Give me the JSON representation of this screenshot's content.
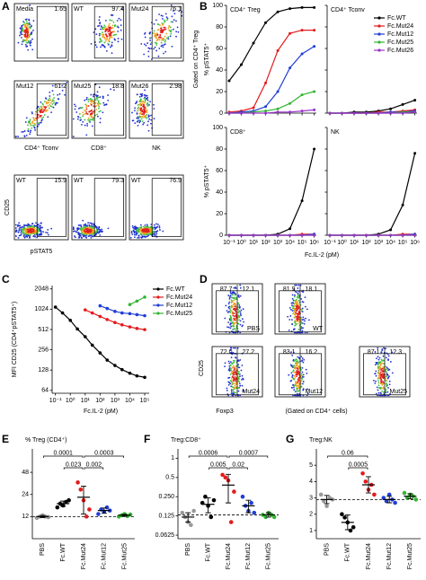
{
  "flow_a": {
    "label": "A",
    "ylabel": "CD25",
    "xlabel": "pSTAT5",
    "populations": [
      "CD4⁺ Tconv",
      "CD8⁺",
      "NK"
    ],
    "plots": [
      {
        "sample": "Media",
        "gate": "1.65"
      },
      {
        "sample": "WT",
        "gate": "97.4"
      },
      {
        "sample": "Mut24",
        "gate": "76.1"
      },
      {
        "sample": "Mut12",
        "gate": "61.2"
      },
      {
        "sample": "Mut25",
        "gate": "18.8"
      },
      {
        "sample": "Mut26",
        "gate": "2.98"
      },
      {
        "sample": "WT",
        "gate": "15.9"
      },
      {
        "sample": "WT",
        "gate": "79.3"
      },
      {
        "sample": "WT",
        "gate": "76.9"
      }
    ]
  },
  "flow_d": {
    "label": "D",
    "ylabel": "CD25",
    "xlabel": "Foxp3",
    "gate_note": "(Gated on CD4⁺ cells)",
    "plots": [
      {
        "sample": "PBS",
        "left": "87.7",
        "right": "12.1"
      },
      {
        "sample": "WT",
        "left": "81.9",
        "right": "18.1"
      },
      {
        "sample": "Mut24",
        "left": "72.0",
        "right": "27.2"
      },
      {
        "sample": "Mut12",
        "left": "83.1",
        "right": "16.2"
      },
      {
        "sample": "Mut25",
        "left": "87.1",
        "right": "12.3"
      }
    ]
  },
  "chart_data": [
    {
      "type": "line",
      "label": "B",
      "ylabel": "% pSTAT5⁺",
      "xlabel": "Fc.IL-2 (pM)",
      "gate_note": "Gated on CD4⁺ Treg",
      "xlog": true,
      "x": [
        0.1,
        1,
        10,
        100,
        1000,
        10000,
        100000,
        1000000
      ],
      "xlim": [
        0.06,
        1500000
      ],
      "xticks": [
        {
          "value": 0.1,
          "label": "10⁻¹"
        },
        {
          "value": 1,
          "label": "10⁰"
        },
        {
          "value": 10,
          "label": "10¹"
        },
        {
          "value": 100,
          "label": "10²"
        },
        {
          "value": 1000,
          "label": "10³"
        },
        {
          "value": 10000,
          "label": "10⁴"
        },
        {
          "value": 100000,
          "label": "10⁵"
        },
        {
          "value": 1000000,
          "label": "10⁶"
        }
      ],
      "ylim": [
        0,
        100
      ],
      "yticks": [
        0,
        20,
        40,
        60,
        80,
        100
      ],
      "legend_corner": "upper right",
      "legend": [
        {
          "name": "Fc.WT",
          "color": "#000000"
        },
        {
          "name": "Fc.Mut24",
          "color": "#e41a1c"
        },
        {
          "name": "Fc.Mut12",
          "color": "#1f3fd6"
        },
        {
          "name": "Fc.Mut25",
          "color": "#33b533"
        },
        {
          "name": "Fc.Mut26",
          "color": "#9933cc"
        }
      ],
      "panels": [
        {
          "title": "CD4⁺ Treg",
          "series": [
            {
              "values": [
                30,
                45,
                65,
                84,
                94,
                97,
                98,
                98
              ]
            },
            {
              "values": [
                1,
                2,
                5,
                28,
                58,
                74,
                77,
                77
              ]
            },
            {
              "values": [
                0,
                1,
                2,
                6,
                20,
                42,
                55,
                62
              ]
            },
            {
              "values": [
                0,
                0,
                1,
                2,
                4,
                9,
                17,
                20
              ]
            },
            {
              "values": [
                0,
                0,
                0,
                0,
                1,
                1,
                2,
                3
              ]
            }
          ]
        },
        {
          "title": "CD4⁺ Tconv",
          "series": [
            {
              "values": [
                0,
                0,
                1,
                1,
                2,
                4,
                8,
                12
              ]
            },
            {
              "values": [
                0,
                0,
                0,
                0,
                1,
                1,
                2,
                3
              ]
            },
            {
              "values": [
                0,
                0,
                0,
                0,
                0,
                1,
                1,
                2
              ]
            },
            {
              "values": [
                0,
                0,
                0,
                0,
                0,
                0,
                1,
                1
              ]
            },
            {
              "values": [
                0,
                0,
                0,
                0,
                0,
                0,
                0,
                1
              ]
            }
          ]
        },
        {
          "title": "CD8⁺",
          "series": [
            {
              "values": [
                0,
                0,
                0,
                0,
                1,
                6,
                32,
                80
              ]
            },
            {
              "values": [
                0,
                0,
                0,
                0,
                0,
                0,
                1,
                1
              ]
            },
            {
              "values": [
                0,
                0,
                0,
                0,
                0,
                0,
                0,
                1
              ]
            },
            {
              "values": [
                0,
                0,
                0,
                0,
                0,
                0,
                0,
                0
              ]
            },
            {
              "values": [
                0,
                0,
                0,
                0,
                0,
                0,
                0,
                0
              ]
            }
          ]
        },
        {
          "title": "NK",
          "series": [
            {
              "values": [
                0,
                0,
                0,
                0,
                1,
                5,
                28,
                76
              ]
            },
            {
              "values": [
                0,
                0,
                0,
                0,
                0,
                0,
                1,
                1
              ]
            },
            {
              "values": [
                0,
                0,
                0,
                0,
                0,
                0,
                0,
                1
              ]
            },
            {
              "values": [
                0,
                0,
                0,
                0,
                0,
                0,
                0,
                0
              ]
            },
            {
              "values": [
                0,
                0,
                0,
                0,
                0,
                0,
                0,
                0
              ]
            }
          ]
        }
      ]
    },
    {
      "type": "line",
      "label": "C",
      "ylabel": "MFI CD25 (CD4⁺pSTAT5⁺)",
      "xlabel": "Fc.IL-2 (pM)",
      "xlog": true,
      "ylog": true,
      "x": [
        0.1,
        0.3,
        1,
        3,
        10,
        30,
        100,
        300,
        1000,
        3000,
        10000,
        30000,
        100000
      ],
      "xlim": [
        0.06,
        200000
      ],
      "xticks": [
        {
          "value": 0.1,
          "label": "10⁻¹"
        },
        {
          "value": 1,
          "label": "10⁰"
        },
        {
          "value": 10,
          "label": "10¹"
        },
        {
          "value": 100,
          "label": "10²"
        },
        {
          "value": 1000,
          "label": "10³"
        },
        {
          "value": 10000,
          "label": "10⁴"
        },
        {
          "value": 100000,
          "label": "10⁵"
        }
      ],
      "ylim": [
        58,
        2300
      ],
      "yticks": [
        64,
        128,
        256,
        512,
        1024,
        2048
      ],
      "legend_corner": "right",
      "series": [
        {
          "name": "Fc.WT",
          "color": "#000000",
          "values": [
            1100,
            900,
            700,
            520,
            400,
            300,
            230,
            180,
            150,
            130,
            115,
            105,
            100
          ]
        },
        {
          "name": "Fc.Mut24",
          "color": "#e41a1c",
          "values": [
            null,
            null,
            null,
            null,
            1000,
            900,
            800,
            720,
            650,
            600,
            560,
            530,
            510
          ]
        },
        {
          "name": "Fc.Mut12",
          "color": "#1f3fd6",
          "values": [
            null,
            null,
            null,
            null,
            null,
            null,
            1150,
            1050,
            950,
            900,
            880,
            850,
            820
          ]
        },
        {
          "name": "Fc.Mut25",
          "color": "#33b533",
          "values": [
            null,
            null,
            null,
            null,
            null,
            null,
            null,
            null,
            null,
            null,
            1200,
            1350,
            1550
          ]
        }
      ]
    },
    {
      "type": "dot",
      "label": "E",
      "title": "% Treg (CD4⁺)",
      "ylog": true,
      "ylim": [
        6,
        100
      ],
      "yticks": [
        12,
        24,
        48
      ],
      "categories": [
        "PBS",
        "Fc.WT",
        "Fc.Mut24",
        "Fc.Mut12",
        "Fc.Mut25"
      ],
      "colors": [
        "#999999",
        "#000000",
        "#e41a1c",
        "#1f3fd6",
        "#33b533"
      ],
      "values": [
        [
          11.5,
          12,
          12.5,
          12,
          11.8
        ],
        [
          16,
          18,
          17,
          19,
          20
        ],
        [
          35,
          28,
          20,
          12,
          15
        ],
        [
          13,
          15,
          14,
          16,
          14.5
        ],
        [
          12,
          12.5,
          13,
          12.2,
          12.8
        ]
      ],
      "means": [
        12,
        18,
        22,
        14.5,
        12.5
      ],
      "sds": [
        0.4,
        1.5,
        9,
        1.2,
        0.4
      ],
      "reference_line": 12,
      "brackets": [
        [
          {
            "label": "0.0001",
            "from": "PBS",
            "to": "Fc.Mut24"
          },
          {
            "label": "0.0003",
            "from": "Fc.Mut24",
            "to": "Fc.Mut25"
          }
        ],
        [
          {
            "label": "0.023",
            "from": "Fc.WT",
            "to": "Fc.Mut24"
          },
          {
            "label": "0.002",
            "from": "Fc.Mut24",
            "to": "Fc.Mut12"
          }
        ]
      ]
    },
    {
      "type": "dot",
      "label": "F",
      "title": "Treg:CD8⁺",
      "ylog": true,
      "ylim": [
        0.055,
        1.4
      ],
      "yticks": [
        0.0625,
        0.125,
        {
          "value": 0.25,
          "label": "0.250"
        },
        0.5,
        1
      ],
      "categories": [
        "PBS",
        "Fc.WT",
        "Fc.Mut24",
        "Fc.Mut12",
        "Fc.Mut25"
      ],
      "colors": [
        "#999999",
        "#000000",
        "#e41a1c",
        "#1f3fd6",
        "#33b533"
      ],
      "values": [
        [
          0.14,
          0.12,
          0.1,
          0.09,
          0.15
        ],
        [
          0.2,
          0.25,
          0.18,
          0.12,
          0.22
        ],
        [
          0.55,
          0.5,
          0.45,
          0.1,
          0.3
        ],
        [
          0.25,
          0.18,
          0.15,
          0.2,
          0.14
        ],
        [
          0.13,
          0.12,
          0.14,
          0.13,
          0.12
        ]
      ],
      "means": [
        0.12,
        0.19,
        0.38,
        0.18,
        0.13
      ],
      "sds": [
        0.02,
        0.05,
        0.18,
        0.04,
        0.01
      ],
      "reference_line": 0.13,
      "brackets": [
        [
          {
            "label": "0.0006",
            "from": "PBS",
            "to": "Fc.Mut24"
          },
          {
            "label": "0.0007",
            "from": "Fc.Mut24",
            "to": "Fc.Mut25"
          }
        ],
        [
          {
            "label": "0.005",
            "from": "Fc.WT",
            "to": "Fc.Mut24"
          },
          {
            "label": "0.02",
            "from": "Fc.Mut24",
            "to": "Fc.Mut12"
          }
        ]
      ]
    },
    {
      "type": "dot",
      "label": "G",
      "title": "Treg:NK",
      "ylim": [
        0.5,
        6
      ],
      "yticks": [
        1,
        2,
        3,
        4,
        5
      ],
      "categories": [
        "PBS",
        "Fc.WT",
        "Fc.Mut24",
        "Fc.Mut12",
        "Fc.Mut25"
      ],
      "colors": [
        "#999999",
        "#000000",
        "#e41a1c",
        "#1f3fd6",
        "#33b533"
      ],
      "values": [
        [
          3.2,
          2.8,
          2.5,
          3.0,
          2.9
        ],
        [
          2.0,
          1.8,
          1.5,
          1.0,
          1.2
        ],
        [
          4.5,
          4.0,
          3.5,
          3.8,
          3.2
        ],
        [
          3.0,
          2.8,
          3.2,
          2.9,
          2.7
        ],
        [
          3.3,
          3.0,
          3.2,
          3.1,
          2.9
        ]
      ],
      "means": [
        2.9,
        1.5,
        3.8,
        2.9,
        3.1
      ],
      "sds": [
        0.25,
        0.45,
        0.5,
        0.2,
        0.15
      ],
      "reference_line": 2.9,
      "brackets": [
        [
          {
            "label": "0.06",
            "from": "PBS",
            "to": "Fc.Mut24"
          }
        ],
        [
          {
            "label": "0.0005",
            "from": "Fc.WT",
            "to": "Fc.Mut24"
          }
        ]
      ]
    }
  ]
}
